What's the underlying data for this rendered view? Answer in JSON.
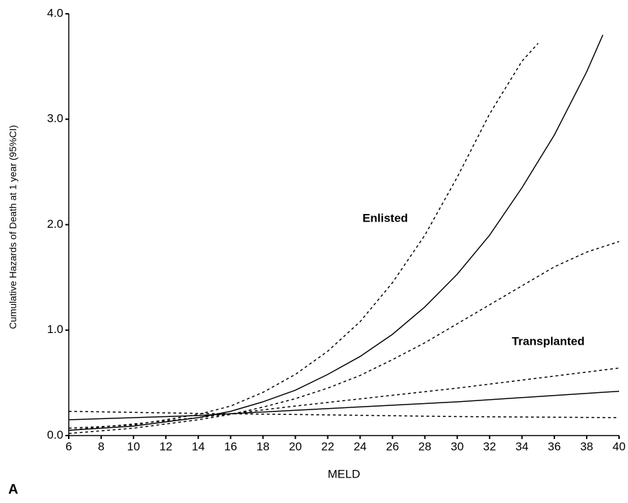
{
  "chart_data": {
    "type": "line",
    "panel_label": "A",
    "x_label": "MELD",
    "y_label": "Cumulative Hazards of Death at 1 year (95%CI)",
    "annotations": [
      "Enlisted",
      "Transplanted"
    ],
    "xlim": [
      6,
      40
    ],
    "xticks": [
      6,
      8,
      10,
      12,
      14,
      16,
      18,
      20,
      22,
      24,
      26,
      28,
      30,
      32,
      34,
      36,
      38,
      40
    ],
    "ylim": [
      0,
      4
    ],
    "yticks": [
      {
        "value": 0,
        "label": "0.0"
      },
      {
        "value": 1,
        "label": "1.0"
      },
      {
        "value": 2,
        "label": "2.0"
      },
      {
        "value": 3,
        "label": "3.0"
      },
      {
        "value": 4,
        "label": "4.0"
      }
    ],
    "grid": false,
    "series": [
      {
        "color": "#000000",
        "dashed": false,
        "x": [
          6,
          10,
          14,
          16,
          18,
          20,
          22,
          24,
          26,
          28,
          30,
          32,
          34,
          36,
          38,
          39
        ],
        "values": [
          0.05,
          0.09,
          0.17,
          0.23,
          0.32,
          0.43,
          0.58,
          0.75,
          0.96,
          1.22,
          1.53,
          1.9,
          2.35,
          2.85,
          3.45,
          3.8
        ]
      },
      {
        "color": "#000000",
        "dashed": true,
        "x": [
          6,
          10,
          14,
          16,
          18,
          20,
          22,
          24,
          26,
          28,
          30,
          32,
          34,
          35
        ],
        "values": [
          0.07,
          0.1,
          0.2,
          0.28,
          0.41,
          0.58,
          0.8,
          1.08,
          1.45,
          1.9,
          2.45,
          3.05,
          3.55,
          3.72
        ]
      },
      {
        "color": "#000000",
        "dashed": true,
        "x": [
          6,
          10,
          14,
          16,
          18,
          20,
          22,
          24,
          26,
          28,
          30,
          32,
          34,
          36,
          38,
          40
        ],
        "values": [
          0.02,
          0.07,
          0.15,
          0.2,
          0.27,
          0.35,
          0.45,
          0.57,
          0.72,
          0.88,
          1.06,
          1.24,
          1.42,
          1.6,
          1.74,
          1.84
        ]
      },
      {
        "color": "#000000",
        "dashed": false,
        "x": [
          6,
          14,
          20,
          30,
          40
        ],
        "values": [
          0.15,
          0.19,
          0.24,
          0.32,
          0.42
        ]
      },
      {
        "color": "#000000",
        "dashed": true,
        "x": [
          6,
          14,
          20,
          30,
          40
        ],
        "values": [
          0.05,
          0.17,
          0.28,
          0.45,
          0.64
        ]
      },
      {
        "color": "#000000",
        "dashed": true,
        "x": [
          6,
          14,
          20,
          30,
          40
        ],
        "values": [
          0.23,
          0.21,
          0.2,
          0.18,
          0.17
        ]
      }
    ]
  }
}
